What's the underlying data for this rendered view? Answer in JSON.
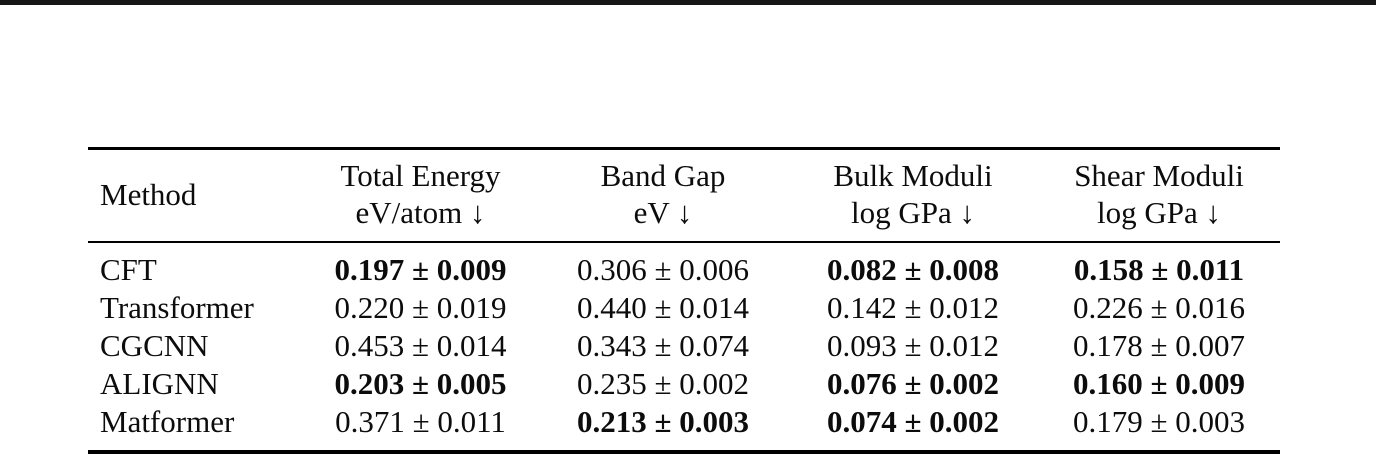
{
  "page": {
    "background": "#ffffff",
    "text_color": "#0c0c0c",
    "rule_color": "#000000"
  },
  "table": {
    "method_header": "Method",
    "headers": [
      {
        "line1": "Total Energy",
        "line2": "eV/atom ↓"
      },
      {
        "line1": "Band Gap",
        "line2": "eV ↓"
      },
      {
        "line1": "Bulk Moduli",
        "line2": "log GPa ↓"
      },
      {
        "line1": "Shear Moduli",
        "line2": "log GPa ↓"
      }
    ],
    "rows": [
      {
        "method": "CFT",
        "cells": [
          {
            "text": "0.197 ± 0.009",
            "bold": true
          },
          {
            "text": "0.306 ± 0.006",
            "bold": false
          },
          {
            "text": "0.082 ± 0.008",
            "bold": true
          },
          {
            "text": "0.158 ± 0.011",
            "bold": true
          }
        ]
      },
      {
        "method": "Transformer",
        "cells": [
          {
            "text": "0.220 ± 0.019",
            "bold": false
          },
          {
            "text": "0.440 ± 0.014",
            "bold": false
          },
          {
            "text": "0.142 ± 0.012",
            "bold": false
          },
          {
            "text": "0.226 ± 0.016",
            "bold": false
          }
        ]
      },
      {
        "method": "CGCNN",
        "cells": [
          {
            "text": "0.453 ± 0.014",
            "bold": false
          },
          {
            "text": "0.343 ± 0.074",
            "bold": false
          },
          {
            "text": "0.093 ± 0.012",
            "bold": false
          },
          {
            "text": "0.178 ± 0.007",
            "bold": false
          }
        ]
      },
      {
        "method": "ALIGNN",
        "cells": [
          {
            "text": "0.203 ± 0.005",
            "bold": true
          },
          {
            "text": "0.235 ± 0.002",
            "bold": false
          },
          {
            "text": "0.076 ± 0.002",
            "bold": true
          },
          {
            "text": "0.160 ± 0.009",
            "bold": true
          }
        ]
      },
      {
        "method": "Matformer",
        "cells": [
          {
            "text": "0.371 ± 0.011",
            "bold": false
          },
          {
            "text": "0.213 ± 0.003",
            "bold": true
          },
          {
            "text": "0.074 ± 0.002",
            "bold": true
          },
          {
            "text": "0.179 ± 0.003",
            "bold": false
          }
        ]
      }
    ]
  }
}
